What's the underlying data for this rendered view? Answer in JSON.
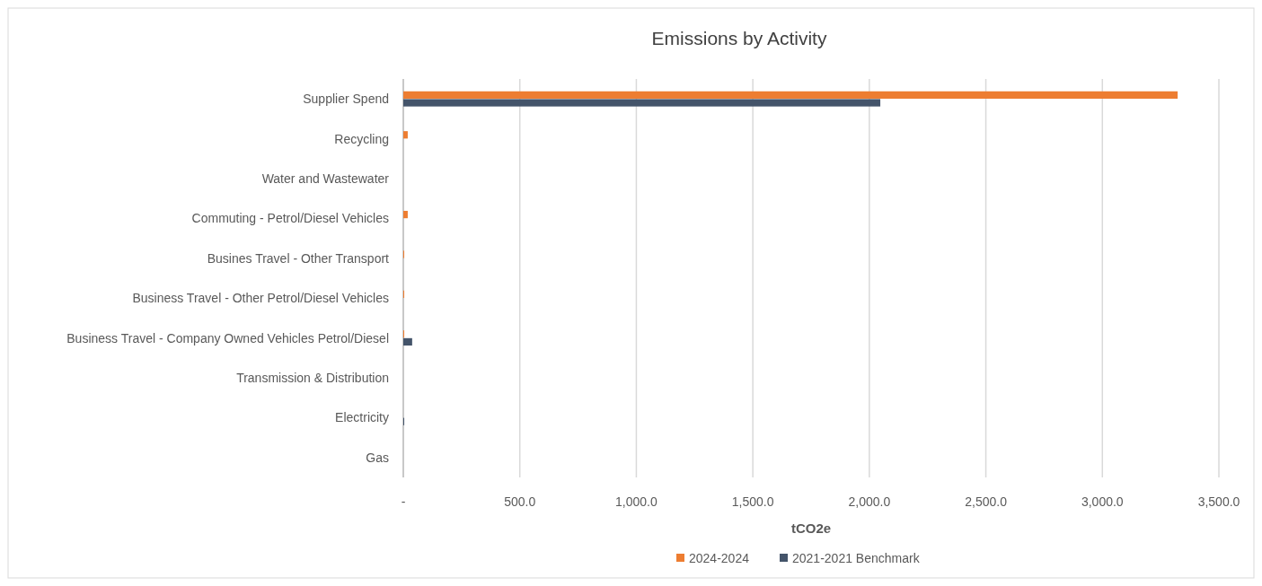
{
  "chart_data": {
    "type": "bar",
    "orientation": "horizontal",
    "title": "Emissions by Activity",
    "xlabel": "tCO2e",
    "categories": [
      "Supplier Spend",
      "Recycling",
      "Water and Wastewater",
      "Commuting - Petrol/Diesel Vehicles",
      "Busines Travel - Other Transport",
      "Business Travel - Other Petrol/Diesel Vehicles",
      "Business Travel - Company Owned Vehicles Petrol/Diesel",
      "Transmission & Distribution",
      "Electricity",
      "Gas"
    ],
    "series": [
      {
        "name": "2024-2024",
        "color": "#ed7d31",
        "values": [
          3323,
          19,
          0,
          19,
          4,
          4,
          4,
          0,
          0,
          0
        ]
      },
      {
        "name": "2021-2021 Benchmark",
        "color": "#44546a",
        "values": [
          2047,
          0,
          0,
          0,
          0,
          0,
          38,
          0,
          4,
          0
        ]
      }
    ],
    "xlim": [
      0,
      3500
    ],
    "xticks": [
      {
        "value": 0,
        "label": "-"
      },
      {
        "value": 500,
        "label": "500.0"
      },
      {
        "value": 1000,
        "label": "1,000.0"
      },
      {
        "value": 1500,
        "label": "1,500.0"
      },
      {
        "value": 2000,
        "label": "2,000.0"
      },
      {
        "value": 2500,
        "label": "2,500.0"
      },
      {
        "value": 3000,
        "label": "3,000.0"
      },
      {
        "value": 3500,
        "label": "3,500.0"
      }
    ],
    "grid": "x",
    "legend": "bottom"
  }
}
